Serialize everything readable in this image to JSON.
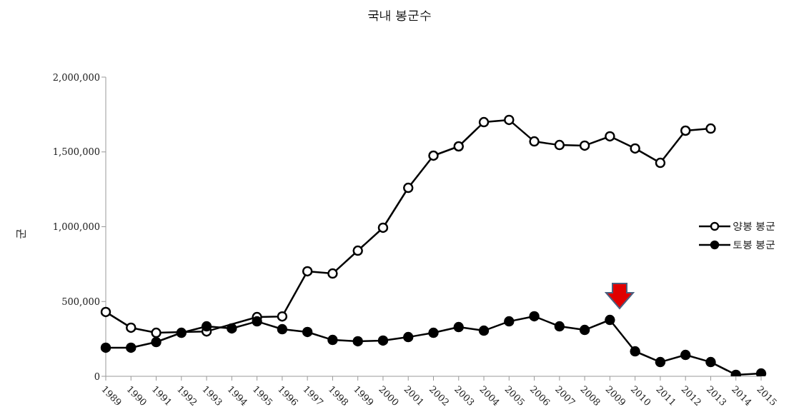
{
  "chart_data": {
    "type": "line",
    "title": "국내 봉군수",
    "ylabel": "군",
    "categories": [
      "1989",
      "1990",
      "1991",
      "1992",
      "1993",
      "1994",
      "1995",
      "1996",
      "1997",
      "1998",
      "1999",
      "2000",
      "2001",
      "2002",
      "2003",
      "2004",
      "2005",
      "2006",
      "2007",
      "2008",
      "2009",
      "2010",
      "2011",
      "2012",
      "2013",
      "2014",
      "2015"
    ],
    "series": [
      {
        "name": "양봉 봉군",
        "color": "#000000",
        "values": [
          430000,
          325000,
          291000,
          null,
          300000,
          null,
          396000,
          400000,
          702000,
          687000,
          840000,
          993000,
          1260000,
          1475000,
          1537000,
          1699000,
          1714000,
          1570000,
          1546000,
          1542000,
          1604000,
          1523000,
          1427000,
          1642000,
          1656000,
          null,
          null
        ]
      },
      {
        "name": "토봉 봉군",
        "color": "#000000",
        "values": [
          191000,
          191000,
          229000,
          291000,
          334000,
          320000,
          367000,
          315000,
          296000,
          243000,
          234000,
          239000,
          262000,
          291000,
          329000,
          305000,
          367000,
          401000,
          334000,
          310000,
          377000,
          167000,
          95000,
          143000,
          95000,
          10000,
          19000
        ]
      }
    ],
    "ylim": [
      0,
      2000000
    ],
    "yticks": [
      0,
      {
        "value": 500000,
        "label": "500,000"
      },
      {
        "value": 1000000,
        "label": "1,000,000"
      },
      {
        "value": 1500000,
        "label": "1,500,000"
      },
      {
        "value": 2000000,
        "label": "2,000,000"
      }
    ],
    "grid": false,
    "legend": "right",
    "marker": "circle",
    "line_style": "solid"
  }
}
